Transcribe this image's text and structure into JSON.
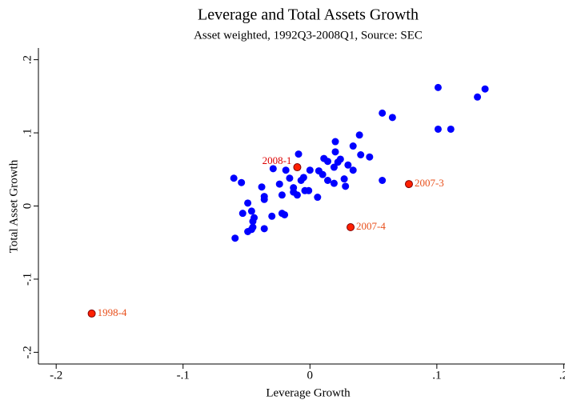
{
  "chart_data": {
    "type": "scatter",
    "title": "Leverage and Total Assets Growth",
    "subtitle": "Asset weighted, 1992Q3-2008Q1, Source: SEC",
    "x_label": "Leverage Growth",
    "y_label": "Total Asset Growth",
    "xlim": [
      -0.214,
      0.201
    ],
    "ylim": [
      -0.216,
      0.216
    ],
    "xticks": [
      {
        "value": -0.2,
        "label": "-.2"
      },
      {
        "value": -0.1,
        "label": "-.1"
      },
      0,
      {
        "value": 0.1,
        "label": ".1"
      },
      {
        "value": 0.2,
        "label": ".2"
      }
    ],
    "yticks": [
      {
        "value": -0.2,
        "label": "-.2"
      },
      {
        "value": -0.1,
        "label": "-.1"
      },
      0,
      {
        "value": 0.1,
        "label": ".1"
      },
      {
        "value": 0.2,
        "label": ".2"
      }
    ],
    "series": [
      {
        "color": "#0000ff",
        "x": [
          0.101,
          0.138,
          0.132,
          0.101,
          0.111,
          0.057,
          0.065,
          0.039,
          0.02,
          0.034,
          -0.009,
          0.02,
          0.011,
          0.024,
          0.014,
          0.022,
          0.03,
          0.04,
          0.047,
          0.034,
          0.019,
          0.007,
          0.01,
          0.0,
          -0.005,
          -0.029,
          -0.019,
          -0.016,
          -0.013,
          -0.007,
          0.014,
          0.027,
          0.019,
          0.028,
          0.057,
          -0.06,
          -0.054,
          -0.038,
          -0.024,
          -0.013,
          -0.004,
          -0.01,
          -0.036,
          -0.036,
          -0.022,
          -0.001,
          0.006,
          -0.049,
          -0.03,
          -0.053,
          -0.046,
          -0.044,
          -0.045,
          -0.02,
          -0.022,
          -0.036,
          -0.049,
          -0.045,
          -0.046,
          -0.059
        ],
        "y": [
          0.162,
          0.16,
          0.149,
          0.105,
          0.105,
          0.127,
          0.121,
          0.097,
          0.088,
          0.082,
          0.071,
          0.074,
          0.065,
          0.064,
          0.061,
          0.06,
          0.056,
          0.07,
          0.067,
          0.049,
          0.053,
          0.048,
          0.043,
          0.049,
          0.039,
          0.051,
          0.049,
          0.038,
          0.025,
          0.035,
          0.035,
          0.037,
          0.031,
          0.027,
          0.035,
          0.038,
          0.032,
          0.026,
          0.03,
          0.019,
          0.021,
          0.015,
          0.013,
          0.009,
          0.015,
          0.021,
          0.012,
          0.004,
          -0.014,
          -0.01,
          -0.007,
          -0.016,
          -0.021,
          -0.012,
          -0.01,
          -0.031,
          -0.035,
          -0.029,
          -0.032,
          -0.044
        ]
      },
      {
        "color": "#ff2000",
        "x": [
          -0.01,
          0.078,
          0.032,
          -0.172
        ],
        "y": [
          0.053,
          0.03,
          -0.029,
          -0.147
        ],
        "labels": [
          "2008-1",
          "2007-3",
          "2007-4",
          "1998-4"
        ],
        "label_colors": [
          "#dd0000",
          "#e8501c",
          "#e8501c",
          "#e8501c"
        ],
        "label_position": [
          "left",
          "right",
          "right",
          "right"
        ]
      }
    ]
  }
}
